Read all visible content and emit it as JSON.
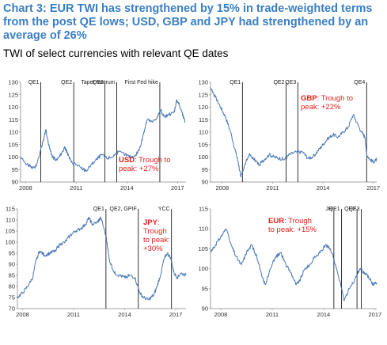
{
  "header": {
    "title_line1": "Chart 3: EUR TWI has strengthened by 15% in trade-weighted terms",
    "title_line2": "from the post QE lows; USD, GBP and JPY had strengthened by an",
    "title_line3": "average of 26%",
    "subtitle": "TWI of select currencies with relevant QE dates"
  },
  "colors": {
    "title": "#3a7fc4",
    "series": "#4a78b8",
    "annotation": "#e0201b",
    "event_line": "#000000"
  },
  "chart_data": [
    {
      "type": "line",
      "id": "usd",
      "xlim": [
        2007.7,
        2017.5
      ],
      "x_ticks": [
        2008,
        2011,
        2014,
        2017
      ],
      "ylim": [
        90,
        130
      ],
      "y_ticks": [
        90,
        95,
        100,
        105,
        110,
        115,
        120,
        125,
        130
      ],
      "events": [
        {
          "label": "QE1",
          "x": 2008.9
        },
        {
          "label": "QE2",
          "x": 2010.85
        },
        {
          "label": "QE3",
          "x": 2012.7
        },
        {
          "label": "Taper tantrum",
          "x": 2013.4
        },
        {
          "label": "First Fed hike",
          "x": 2015.95
        }
      ],
      "annotation": {
        "bold": "USD",
        "rest": ": Trough to peak: +27%"
      },
      "points": [
        [
          2007.7,
          100
        ],
        [
          2008.0,
          97.5
        ],
        [
          2008.3,
          96
        ],
        [
          2008.55,
          95.5
        ],
        [
          2008.8,
          100
        ],
        [
          2009.05,
          107
        ],
        [
          2009.2,
          111
        ],
        [
          2009.4,
          104
        ],
        [
          2009.6,
          100
        ],
        [
          2009.8,
          99
        ],
        [
          2010.0,
          100
        ],
        [
          2010.3,
          104
        ],
        [
          2010.45,
          102
        ],
        [
          2010.7,
          98
        ],
        [
          2011.0,
          97
        ],
        [
          2011.3,
          95.5
        ],
        [
          2011.6,
          94.5
        ],
        [
          2011.9,
          97
        ],
        [
          2012.2,
          99
        ],
        [
          2012.5,
          101
        ],
        [
          2012.8,
          99.5
        ],
        [
          2013.1,
          100
        ],
        [
          2013.5,
          102
        ],
        [
          2013.9,
          101
        ],
        [
          2014.2,
          100
        ],
        [
          2014.5,
          100.5
        ],
        [
          2014.8,
          104
        ],
        [
          2015.0,
          110
        ],
        [
          2015.2,
          115
        ],
        [
          2015.5,
          114
        ],
        [
          2015.8,
          116
        ],
        [
          2016.0,
          119
        ],
        [
          2016.2,
          116
        ],
        [
          2016.5,
          117
        ],
        [
          2016.8,
          118
        ],
        [
          2016.95,
          123
        ],
        [
          2017.1,
          121
        ],
        [
          2017.3,
          117
        ],
        [
          2017.45,
          114
        ]
      ]
    },
    {
      "type": "line",
      "id": "gbp",
      "xlim": [
        2007.3,
        2017.2
      ],
      "x_ticks": [
        2008,
        2011,
        2014,
        2017
      ],
      "ylim": [
        90,
        130
      ],
      "y_ticks": [
        90,
        95,
        100,
        105,
        110,
        115,
        120,
        125,
        130
      ],
      "events": [
        {
          "label": "QE1",
          "x": 2009.2
        },
        {
          "label": "QE2",
          "x": 2011.8
        },
        {
          "label": "QE3",
          "x": 2012.5
        },
        {
          "label": "QE4",
          "x": 2016.6
        }
      ],
      "annotation": {
        "bold": "GBP",
        "rest": ": Trough to peak: +22%"
      },
      "points": [
        [
          2007.3,
          128
        ],
        [
          2007.6,
          124
        ],
        [
          2007.9,
          120
        ],
        [
          2008.2,
          116
        ],
        [
          2008.5,
          110
        ],
        [
          2008.8,
          102
        ],
        [
          2008.95,
          98
        ],
        [
          2009.1,
          92
        ],
        [
          2009.3,
          96
        ],
        [
          2009.6,
          101
        ],
        [
          2009.9,
          99
        ],
        [
          2010.2,
          97
        ],
        [
          2010.5,
          99
        ],
        [
          2010.8,
          101
        ],
        [
          2011.1,
          100
        ],
        [
          2011.4,
          99.5
        ],
        [
          2011.7,
          99
        ],
        [
          2012.0,
          101
        ],
        [
          2012.4,
          102
        ],
        [
          2012.8,
          102
        ],
        [
          2013.1,
          99.5
        ],
        [
          2013.4,
          100
        ],
        [
          2013.7,
          102.5
        ],
        [
          2014.0,
          105
        ],
        [
          2014.3,
          107.5
        ],
        [
          2014.6,
          109
        ],
        [
          2014.9,
          108
        ],
        [
          2015.2,
          110
        ],
        [
          2015.5,
          112
        ],
        [
          2015.8,
          117
        ],
        [
          2016.0,
          114
        ],
        [
          2016.3,
          110
        ],
        [
          2016.5,
          108
        ],
        [
          2016.6,
          101
        ],
        [
          2016.8,
          99
        ],
        [
          2017.0,
          98
        ],
        [
          2017.2,
          99
        ]
      ]
    },
    {
      "type": "line",
      "id": "jpy",
      "xlim": [
        2007.7,
        2017.6
      ],
      "x_ticks": [
        2008,
        2011,
        2014,
        2017
      ],
      "ylim": [
        70,
        115
      ],
      "y_ticks": [
        70,
        75,
        80,
        85,
        90,
        95,
        100,
        105,
        110,
        115
      ],
      "events": [
        {
          "label": "QE1",
          "x": 2012.9
        },
        {
          "label": "QE2, GPIF",
          "x": 2014.8
        },
        {
          "label": "YCC",
          "x": 2016.75
        }
      ],
      "annotation": {
        "bold": "JPY",
        "rest_lines": [
          "Trough",
          "to peak:",
          "+30%"
        ]
      },
      "points": [
        [
          2007.7,
          75
        ],
        [
          2008.0,
          77
        ],
        [
          2008.3,
          80
        ],
        [
          2008.6,
          84
        ],
        [
          2008.8,
          92
        ],
        [
          2009.0,
          96
        ],
        [
          2009.3,
          94
        ],
        [
          2009.6,
          95
        ],
        [
          2009.9,
          96
        ],
        [
          2010.2,
          99
        ],
        [
          2010.5,
          100
        ],
        [
          2010.8,
          103
        ],
        [
          2011.1,
          105
        ],
        [
          2011.4,
          106
        ],
        [
          2011.7,
          108
        ],
        [
          2011.9,
          111
        ],
        [
          2012.1,
          108
        ],
        [
          2012.4,
          109
        ],
        [
          2012.6,
          111
        ],
        [
          2012.9,
          103
        ],
        [
          2013.1,
          92
        ],
        [
          2013.4,
          86
        ],
        [
          2013.7,
          85
        ],
        [
          2014.0,
          84
        ],
        [
          2014.3,
          85
        ],
        [
          2014.6,
          84
        ],
        [
          2014.9,
          77
        ],
        [
          2015.1,
          75
        ],
        [
          2015.4,
          74
        ],
        [
          2015.7,
          76
        ],
        [
          2015.9,
          80
        ],
        [
          2016.1,
          85
        ],
        [
          2016.3,
          92
        ],
        [
          2016.5,
          95
        ],
        [
          2016.7,
          93
        ],
        [
          2016.9,
          86
        ],
        [
          2017.1,
          84
        ],
        [
          2017.3,
          86
        ],
        [
          2017.6,
          85
        ]
      ]
    },
    {
      "type": "line",
      "id": "eur",
      "xlim": [
        2007.4,
        2017.1
      ],
      "x_ticks": [
        2008,
        2011,
        2014,
        2017
      ],
      "ylim": [
        90,
        115
      ],
      "y_ticks": [
        90,
        95,
        100,
        105,
        110,
        115
      ],
      "events": [
        {
          "label": "JH",
          "x": 2014.6
        },
        {
          "label": "QE1",
          "x": 2015.05
        },
        {
          "label": "QE2",
          "x": 2015.95
        },
        {
          "label": "QE3",
          "x": 2016.2
        }
      ],
      "annotation": {
        "bold": "EUR",
        "rest_lines": [
          ": Trough",
          "to peak: +15%"
        ]
      },
      "points": [
        [
          2007.4,
          104
        ],
        [
          2007.7,
          106
        ],
        [
          2008.0,
          108
        ],
        [
          2008.3,
          110
        ],
        [
          2008.6,
          106
        ],
        [
          2008.9,
          103
        ],
        [
          2009.2,
          101
        ],
        [
          2009.5,
          104
        ],
        [
          2009.8,
          106
        ],
        [
          2010.1,
          103
        ],
        [
          2010.4,
          98
        ],
        [
          2010.6,
          96
        ],
        [
          2010.9,
          100
        ],
        [
          2011.2,
          103
        ],
        [
          2011.5,
          104
        ],
        [
          2011.8,
          101
        ],
        [
          2012.1,
          99
        ],
        [
          2012.4,
          96
        ],
        [
          2012.6,
          97
        ],
        [
          2012.9,
          100
        ],
        [
          2013.2,
          101
        ],
        [
          2013.5,
          103
        ],
        [
          2013.8,
          104
        ],
        [
          2014.1,
          106
        ],
        [
          2014.4,
          105
        ],
        [
          2014.7,
          101
        ],
        [
          2015.0,
          96
        ],
        [
          2015.2,
          92
        ],
        [
          2015.5,
          95
        ],
        [
          2015.8,
          97
        ],
        [
          2016.1,
          100
        ],
        [
          2016.4,
          99
        ],
        [
          2016.7,
          97.5
        ],
        [
          2016.9,
          96
        ],
        [
          2017.1,
          96.5
        ]
      ]
    }
  ]
}
